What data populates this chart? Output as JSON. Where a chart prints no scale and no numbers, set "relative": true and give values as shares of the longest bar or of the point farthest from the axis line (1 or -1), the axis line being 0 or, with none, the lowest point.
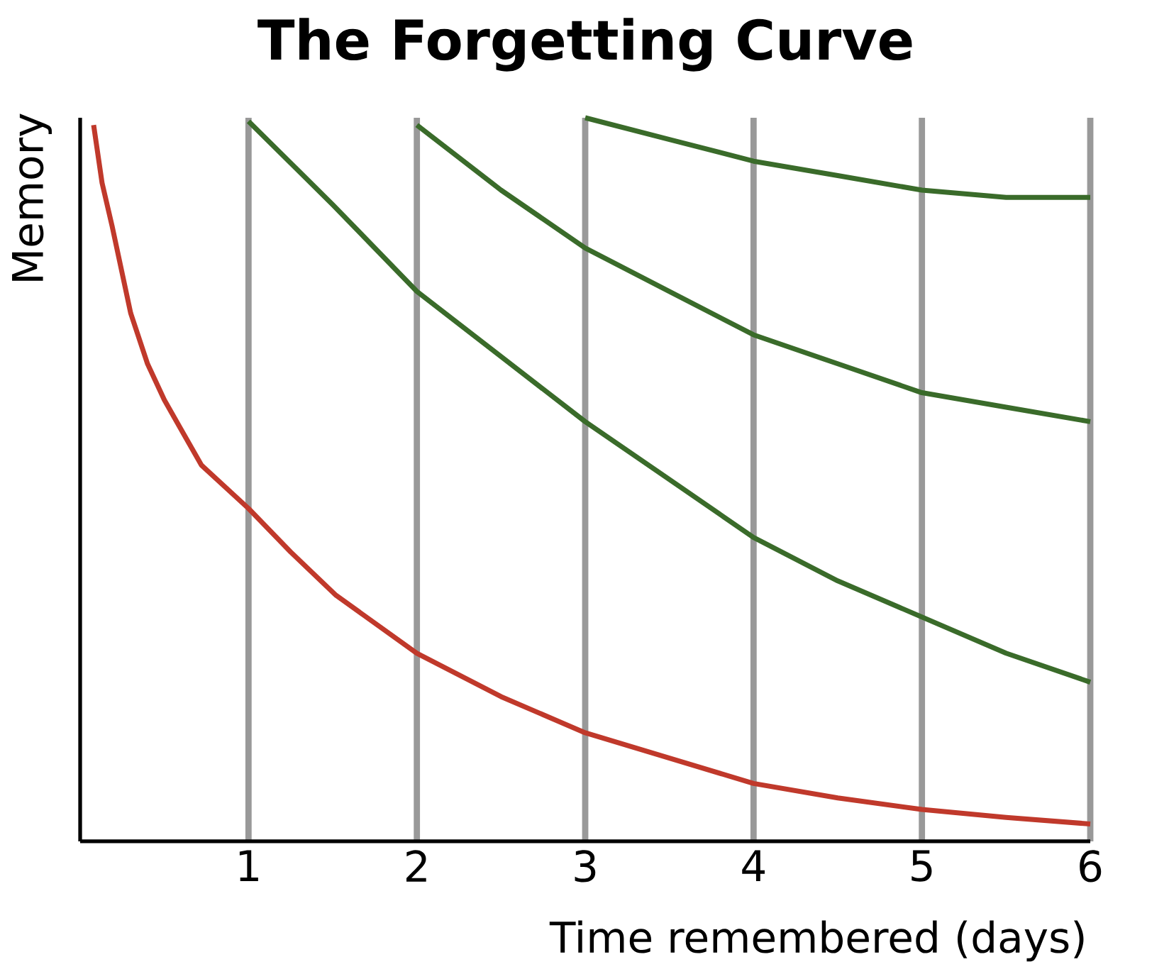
{
  "chart_data": {
    "type": "line",
    "title": "The Forgetting Curve",
    "xlabel": "Time remembered (days)",
    "ylabel": "Memory",
    "relative": true,
    "xlim": [
      0,
      6
    ],
    "xticks": [
      1,
      2,
      3,
      4,
      5,
      6
    ],
    "grid": "x",
    "marker": "none",
    "line_style": "solid",
    "series": [
      {
        "color": "#c0392b",
        "x": [
          0.08,
          0.13,
          0.19,
          0.3,
          0.4,
          0.5,
          0.72,
          1,
          1.25,
          1.52,
          2,
          2.5,
          3,
          3.5,
          4,
          4.5,
          5,
          5.5,
          6
        ],
        "values": [
          0.99,
          0.91,
          0.85,
          0.73,
          0.66,
          0.61,
          0.52,
          0.46,
          0.4,
          0.34,
          0.26,
          0.2,
          0.15,
          0.115,
          0.08,
          0.06,
          0.044,
          0.033,
          0.024
        ]
      },
      {
        "color": "#3a6b2a",
        "x": [
          1,
          1.5,
          2,
          2.5,
          3,
          3.5,
          4,
          4.5,
          5,
          5.5,
          6
        ],
        "values": [
          0.995,
          0.88,
          0.76,
          0.67,
          0.58,
          0.5,
          0.42,
          0.36,
          0.31,
          0.26,
          0.22
        ]
      },
      {
        "color": "#3a6b2a",
        "x": [
          2,
          2.5,
          3,
          3.5,
          4,
          4.5,
          5,
          5.5,
          6
        ],
        "values": [
          0.99,
          0.9,
          0.82,
          0.76,
          0.7,
          0.66,
          0.62,
          0.6,
          0.58
        ]
      },
      {
        "color": "#3a6b2a",
        "x": [
          3,
          3.5,
          4,
          4.5,
          5,
          5.5,
          6
        ],
        "values": [
          1.0,
          0.97,
          0.94,
          0.92,
          0.9,
          0.89,
          0.89
        ]
      }
    ]
  }
}
